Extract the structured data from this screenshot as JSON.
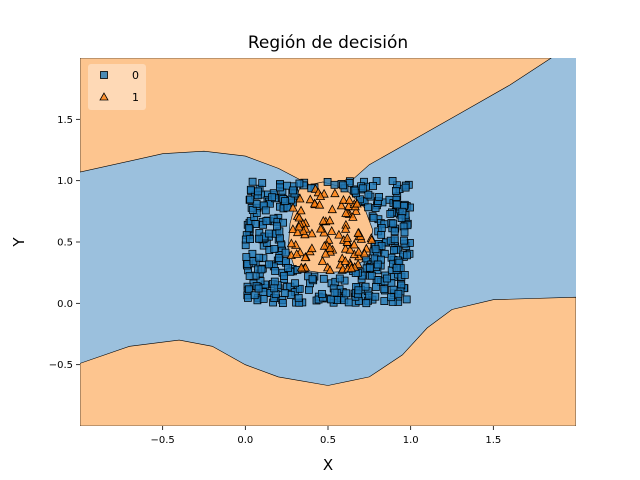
{
  "chart_data": {
    "type": "scatter",
    "title": "Región de decisión",
    "xlabel": "X",
    "ylabel": "Y",
    "xlim": [
      -1,
      2
    ],
    "ylim": [
      -1,
      2
    ],
    "x_ticks": [
      -0.5,
      0.0,
      0.5,
      1.0,
      1.5
    ],
    "x_tick_labels": [
      "−0.5",
      "0.0",
      "0.5",
      "1.0",
      "1.5"
    ],
    "y_ticks": [
      -0.5,
      0.0,
      0.5,
      1.0,
      1.5
    ],
    "y_tick_labels": [
      "−0.5",
      "0.0",
      "0.5",
      "1.0",
      "1.5"
    ],
    "legend_position": "top-left",
    "grid": false,
    "colors": {
      "class0_region": "#9bc0dd",
      "class1_region": "#fdc58f",
      "class0_marker": "#1f77b4",
      "class1_marker": "#ff7f0e",
      "boundary": "#000000"
    },
    "series": [
      {
        "name": "0",
        "marker": "square",
        "region": "uniform square 0–1 excluding central ellipse",
        "count": 400,
        "x_range": [
          0,
          1
        ],
        "y_range": [
          0,
          1
        ]
      },
      {
        "name": "1",
        "marker": "triangle",
        "count": 100,
        "center": [
          0.5,
          0.5
        ],
        "x_range": [
          0.27,
          0.77
        ],
        "y_range": [
          0.27,
          0.97
        ]
      }
    ],
    "decision_boundary": {
      "upper_curve": [
        [
          -1.0,
          1.07
        ],
        [
          -0.5,
          1.22
        ],
        [
          -0.25,
          1.24
        ],
        [
          0.0,
          1.2
        ],
        [
          0.2,
          1.1
        ],
        [
          0.3,
          1.03
        ],
        [
          0.4,
          0.96
        ]
      ],
      "upper_right_curve": [
        [
          0.6,
          0.95
        ],
        [
          0.75,
          1.13
        ],
        [
          1.0,
          1.32
        ],
        [
          1.3,
          1.55
        ],
        [
          1.6,
          1.78
        ],
        [
          1.85,
          2.0
        ]
      ],
      "lower_curve": [
        [
          -1.0,
          -0.49
        ],
        [
          -0.7,
          -0.35
        ],
        [
          -0.4,
          -0.3
        ],
        [
          -0.2,
          -0.35
        ],
        [
          0.0,
          -0.5
        ],
        [
          0.2,
          -0.6
        ],
        [
          0.5,
          -0.67
        ],
        [
          0.75,
          -0.6
        ],
        [
          0.95,
          -0.42
        ],
        [
          1.1,
          -0.2
        ],
        [
          1.25,
          -0.05
        ],
        [
          1.5,
          0.03
        ],
        [
          2.0,
          0.05
        ]
      ],
      "inner_region": [
        [
          0.33,
          0.95
        ],
        [
          0.47,
          0.99
        ],
        [
          0.6,
          0.94
        ],
        [
          0.72,
          0.78
        ],
        [
          0.77,
          0.6
        ],
        [
          0.75,
          0.38
        ],
        [
          0.62,
          0.26
        ],
        [
          0.46,
          0.25
        ],
        [
          0.3,
          0.28
        ],
        [
          0.26,
          0.45
        ],
        [
          0.27,
          0.65
        ]
      ]
    }
  }
}
